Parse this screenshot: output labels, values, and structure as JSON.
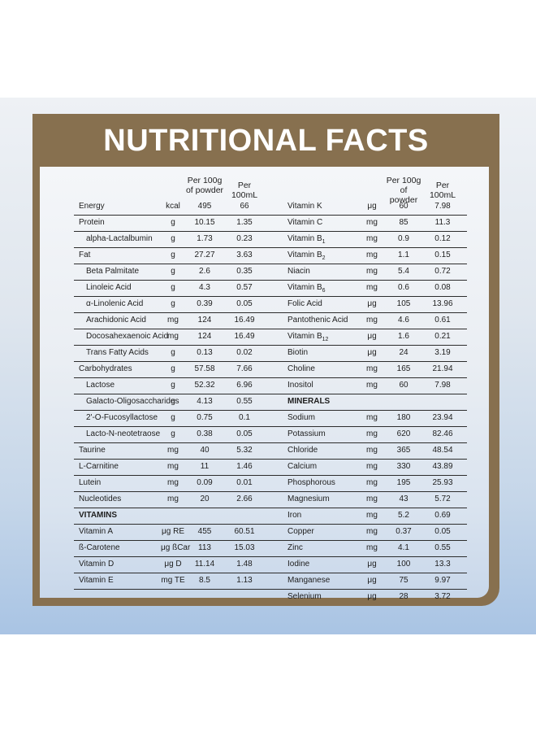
{
  "title": "NUTRITIONAL FACTS",
  "headers": {
    "per100g": [
      "Per 100g",
      "of powder"
    ],
    "per100ml": "Per 100mL"
  },
  "left": [
    {
      "name": "Energy",
      "unit": "kcal",
      "v1": "495",
      "v2": "66"
    },
    {
      "name": "Protein",
      "unit": "g",
      "v1": "10.15",
      "v2": "1.35"
    },
    {
      "name": "alpha-Lactalbumin",
      "unit": "g",
      "v1": "1.73",
      "v2": "0.23",
      "indent": true
    },
    {
      "name": "Fat",
      "unit": "g",
      "v1": "27.27",
      "v2": "3.63"
    },
    {
      "name": "Beta Palmitate",
      "unit": "g",
      "v1": "2.6",
      "v2": "0.35",
      "indent": true
    },
    {
      "name": "Linoleic Acid",
      "unit": "g",
      "v1": "4.3",
      "v2": "0.57",
      "indent": true
    },
    {
      "name": "α-Linolenic Acid",
      "unit": "g",
      "v1": "0.39",
      "v2": "0.05",
      "indent": true
    },
    {
      "name": "Arachidonic Acid",
      "unit": "mg",
      "v1": "124",
      "v2": "16.49",
      "indent": true
    },
    {
      "name": "Docosahexaenoic Acid",
      "unit": "mg",
      "v1": "124",
      "v2": "16.49",
      "indent": true
    },
    {
      "name": "Trans Fatty Acids",
      "unit": "g",
      "v1": "0.13",
      "v2": "0.02",
      "indent": true
    },
    {
      "name": "Carbohydrates",
      "unit": "g",
      "v1": "57.58",
      "v2": "7.66"
    },
    {
      "name": "Lactose",
      "unit": "g",
      "v1": "52.32",
      "v2": "6.96",
      "indent": true
    },
    {
      "name": "Galacto-Oligosaccharides",
      "unit": "g",
      "v1": "4.13",
      "v2": "0.55",
      "indent": true
    },
    {
      "name": "2'-O-Fucosyllactose",
      "unit": "g",
      "v1": "0.75",
      "v2": "0.1",
      "indent": true
    },
    {
      "name": "Lacto-N-neotetraose",
      "unit": "g",
      "v1": "0.38",
      "v2": "0.05",
      "indent": true
    },
    {
      "name": "Taurine",
      "unit": "mg",
      "v1": "40",
      "v2": "5.32"
    },
    {
      "name": "L-Carnitine",
      "unit": "mg",
      "v1": "11",
      "v2": "1.46"
    },
    {
      "name": "Lutein",
      "unit": "mg",
      "v1": "0.09",
      "v2": "0.01"
    },
    {
      "name": "Nucleotides",
      "unit": "mg",
      "v1": "20",
      "v2": "2.66"
    },
    {
      "name": "VITAMINS",
      "section": true
    },
    {
      "name": "Vitamin A",
      "unit": "μg RE",
      "v1": "455",
      "v2": "60.51"
    },
    {
      "name": "ß-Carotene",
      "unit": "μg ßCar",
      "v1": "113",
      "v2": "15.03"
    },
    {
      "name": "Vitamin D",
      "unit": "μg D",
      "v1": "11.14",
      "v2": "1.48"
    },
    {
      "name": "Vitamin E",
      "unit": "mg TE",
      "v1": "8.5",
      "v2": "1.13"
    }
  ],
  "right": [
    {
      "name": "Vitamin K",
      "unit": "μg",
      "v1": "60",
      "v2": "7.98"
    },
    {
      "name": "Vitamin C",
      "unit": "mg",
      "v1": "85",
      "v2": "11.3"
    },
    {
      "name": "Vitamin B",
      "sub": "1",
      "unit": "mg",
      "v1": "0.9",
      "v2": "0.12"
    },
    {
      "name": "Vitamin B",
      "sub": "2",
      "unit": "mg",
      "v1": "1.1",
      "v2": "0.15"
    },
    {
      "name": "Niacin",
      "unit": "mg",
      "v1": "5.4",
      "v2": "0.72"
    },
    {
      "name": "Vitamin B",
      "sub": "6",
      "unit": "mg",
      "v1": "0.6",
      "v2": "0.08"
    },
    {
      "name": "Folic Acid",
      "unit": "μg",
      "v1": "105",
      "v2": "13.96"
    },
    {
      "name": "Pantothenic Acid",
      "unit": "mg",
      "v1": "4.6",
      "v2": "0.61"
    },
    {
      "name": "Vitamin B",
      "sub": "12",
      "unit": "μg",
      "v1": "1.6",
      "v2": "0.21"
    },
    {
      "name": "Biotin",
      "unit": "μg",
      "v1": "24",
      "v2": "3.19"
    },
    {
      "name": "Choline",
      "unit": "mg",
      "v1": "165",
      "v2": "21.94"
    },
    {
      "name": "Inositol",
      "unit": "mg",
      "v1": "60",
      "v2": "7.98"
    },
    {
      "name": "MINERALS",
      "section": true
    },
    {
      "name": "Sodium",
      "unit": "mg",
      "v1": "180",
      "v2": "23.94"
    },
    {
      "name": "Potassium",
      "unit": "mg",
      "v1": "620",
      "v2": "82.46"
    },
    {
      "name": "Chloride",
      "unit": "mg",
      "v1": "365",
      "v2": "48.54"
    },
    {
      "name": "Calcium",
      "unit": "mg",
      "v1": "330",
      "v2": "43.89"
    },
    {
      "name": "Phosphorous",
      "unit": "mg",
      "v1": "195",
      "v2": "25.93"
    },
    {
      "name": "Magnesium",
      "unit": "mg",
      "v1": "43",
      "v2": "5.72"
    },
    {
      "name": "Iron",
      "unit": "mg",
      "v1": "5.2",
      "v2": "0.69"
    },
    {
      "name": "Copper",
      "unit": "mg",
      "v1": "0.37",
      "v2": "0.05"
    },
    {
      "name": "Zinc",
      "unit": "mg",
      "v1": "4.1",
      "v2": "0.55"
    },
    {
      "name": "Iodine",
      "unit": "μg",
      "v1": "100",
      "v2": "13.3"
    },
    {
      "name": "Manganese",
      "unit": "μg",
      "v1": "75",
      "v2": "9.97"
    },
    {
      "name": "Selenium",
      "unit": "μg",
      "v1": "28",
      "v2": "3.72"
    }
  ]
}
